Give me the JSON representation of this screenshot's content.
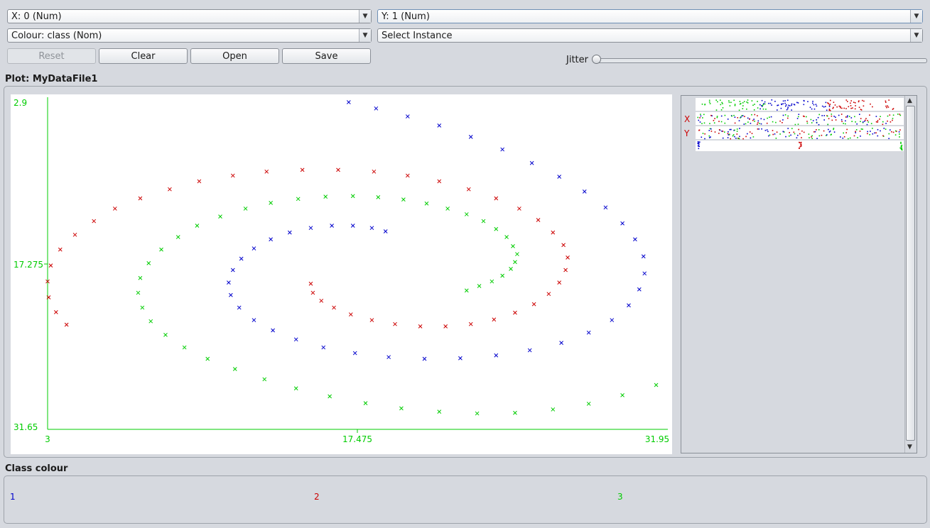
{
  "controls": {
    "x_axis": "X: 0 (Num)",
    "y_axis": "Y: 1 (Num)",
    "colour": "Colour: class (Nom)",
    "instance": "Select Instance",
    "reset": "Reset",
    "clear": "Clear",
    "open": "Open",
    "save": "Save",
    "jitter": "Jitter",
    "jitter_value": 0
  },
  "plot": {
    "title": "Plot: MyDataFile1"
  },
  "matrix": {
    "x_mark": "X",
    "y_mark": "Y"
  },
  "legend": {
    "title": "Class colour",
    "classes": [
      {
        "label": "1",
        "color": "#0000cc"
      },
      {
        "label": "2",
        "color": "#cc0000"
      },
      {
        "label": "3",
        "color": "#00cc00"
      }
    ]
  },
  "chart_data": {
    "type": "scatter",
    "title": "",
    "xlabel": "",
    "ylabel": "",
    "xlim": [
      3,
      31.95
    ],
    "ylim": [
      2.9,
      31.65
    ],
    "xticks": [
      "3",
      "17.475",
      "31.95"
    ],
    "yticks": [
      "2.9",
      "17.275",
      "31.65"
    ],
    "marker": "x",
    "grid": false,
    "series": [
      {
        "name": "1",
        "color": "#0000cc",
        "points": [
          [
            19.05,
            20.3
          ],
          [
            18.4,
            20.6
          ],
          [
            17.5,
            20.8
          ],
          [
            16.5,
            20.8
          ],
          [
            15.5,
            20.6
          ],
          [
            14.5,
            20.2
          ],
          [
            13.6,
            19.6
          ],
          [
            12.8,
            18.8
          ],
          [
            12.2,
            17.9
          ],
          [
            11.8,
            16.9
          ],
          [
            11.6,
            15.8
          ],
          [
            11.7,
            14.7
          ],
          [
            12.1,
            13.6
          ],
          [
            12.8,
            12.5
          ],
          [
            13.7,
            11.6
          ],
          [
            14.8,
            10.8
          ],
          [
            16.1,
            10.1
          ],
          [
            17.6,
            9.6
          ],
          [
            19.2,
            9.25
          ],
          [
            20.9,
            9.1
          ],
          [
            22.6,
            9.15
          ],
          [
            24.3,
            9.4
          ],
          [
            25.9,
            9.85
          ],
          [
            27.4,
            10.5
          ],
          [
            28.7,
            11.4
          ],
          [
            29.8,
            12.5
          ],
          [
            30.6,
            13.8
          ],
          [
            31.1,
            15.2
          ],
          [
            31.35,
            16.6
          ],
          [
            31.3,
            18.1
          ],
          [
            30.9,
            19.6
          ],
          [
            30.3,
            21.0
          ],
          [
            29.5,
            22.4
          ],
          [
            28.5,
            23.8
          ],
          [
            27.3,
            25.1
          ],
          [
            26.0,
            26.3
          ],
          [
            24.6,
            27.5
          ],
          [
            23.1,
            28.6
          ],
          [
            21.6,
            29.6
          ],
          [
            20.1,
            30.4
          ],
          [
            18.6,
            31.1
          ],
          [
            17.3,
            31.65
          ]
        ]
      },
      {
        "name": "2",
        "color": "#cc0000",
        "points": [
          [
            15.5,
            15.7
          ],
          [
            15.6,
            14.9
          ],
          [
            16.0,
            14.2
          ],
          [
            16.6,
            13.6
          ],
          [
            17.4,
            13.0
          ],
          [
            18.4,
            12.5
          ],
          [
            19.5,
            12.15
          ],
          [
            20.7,
            11.95
          ],
          [
            21.9,
            11.95
          ],
          [
            23.1,
            12.15
          ],
          [
            24.2,
            12.55
          ],
          [
            25.2,
            13.15
          ],
          [
            26.1,
            13.9
          ],
          [
            26.8,
            14.8
          ],
          [
            27.3,
            15.8
          ],
          [
            27.6,
            16.9
          ],
          [
            27.7,
            18.0
          ],
          [
            27.5,
            19.1
          ],
          [
            27.0,
            20.2
          ],
          [
            26.3,
            21.3
          ],
          [
            25.4,
            22.3
          ],
          [
            24.3,
            23.2
          ],
          [
            23.0,
            24.0
          ],
          [
            21.6,
            24.7
          ],
          [
            20.1,
            25.2
          ],
          [
            18.5,
            25.55
          ],
          [
            16.8,
            25.7
          ],
          [
            15.1,
            25.7
          ],
          [
            13.4,
            25.55
          ],
          [
            11.8,
            25.2
          ],
          [
            10.2,
            24.7
          ],
          [
            8.8,
            24.0
          ],
          [
            7.4,
            23.2
          ],
          [
            6.2,
            22.3
          ],
          [
            5.2,
            21.2
          ],
          [
            4.3,
            20.0
          ],
          [
            3.6,
            18.7
          ],
          [
            3.15,
            17.3
          ],
          [
            3.0,
            15.9
          ],
          [
            3.05,
            14.5
          ],
          [
            3.4,
            13.2
          ],
          [
            3.9,
            12.1
          ]
        ]
      },
      {
        "name": "3",
        "color": "#00cc00",
        "points": [
          [
            22.9,
            15.1
          ],
          [
            23.5,
            15.5
          ],
          [
            24.1,
            15.9
          ],
          [
            24.6,
            16.4
          ],
          [
            25.0,
            17.0
          ],
          [
            25.2,
            17.6
          ],
          [
            25.3,
            18.3
          ],
          [
            25.1,
            19.0
          ],
          [
            24.8,
            19.8
          ],
          [
            24.3,
            20.5
          ],
          [
            23.7,
            21.2
          ],
          [
            22.9,
            21.8
          ],
          [
            22.0,
            22.3
          ],
          [
            21.0,
            22.75
          ],
          [
            19.9,
            23.1
          ],
          [
            18.7,
            23.3
          ],
          [
            17.5,
            23.4
          ],
          [
            16.2,
            23.35
          ],
          [
            14.9,
            23.15
          ],
          [
            13.6,
            22.8
          ],
          [
            12.4,
            22.3
          ],
          [
            11.2,
            21.6
          ],
          [
            10.1,
            20.8
          ],
          [
            9.2,
            19.8
          ],
          [
            8.4,
            18.7
          ],
          [
            7.8,
            17.5
          ],
          [
            7.4,
            16.2
          ],
          [
            7.3,
            14.9
          ],
          [
            7.5,
            13.6
          ],
          [
            7.9,
            12.4
          ],
          [
            8.6,
            11.2
          ],
          [
            9.5,
            10.1
          ],
          [
            10.6,
            9.1
          ],
          [
            11.9,
            8.2
          ],
          [
            13.3,
            7.3
          ],
          [
            14.8,
            6.5
          ],
          [
            16.4,
            5.8
          ],
          [
            18.1,
            5.2
          ],
          [
            19.8,
            4.75
          ],
          [
            21.6,
            4.45
          ],
          [
            23.4,
            4.3
          ],
          [
            25.2,
            4.35
          ],
          [
            27.0,
            4.65
          ],
          [
            28.7,
            5.15
          ],
          [
            30.3,
            5.9
          ],
          [
            31.9,
            6.8
          ]
        ]
      }
    ]
  }
}
